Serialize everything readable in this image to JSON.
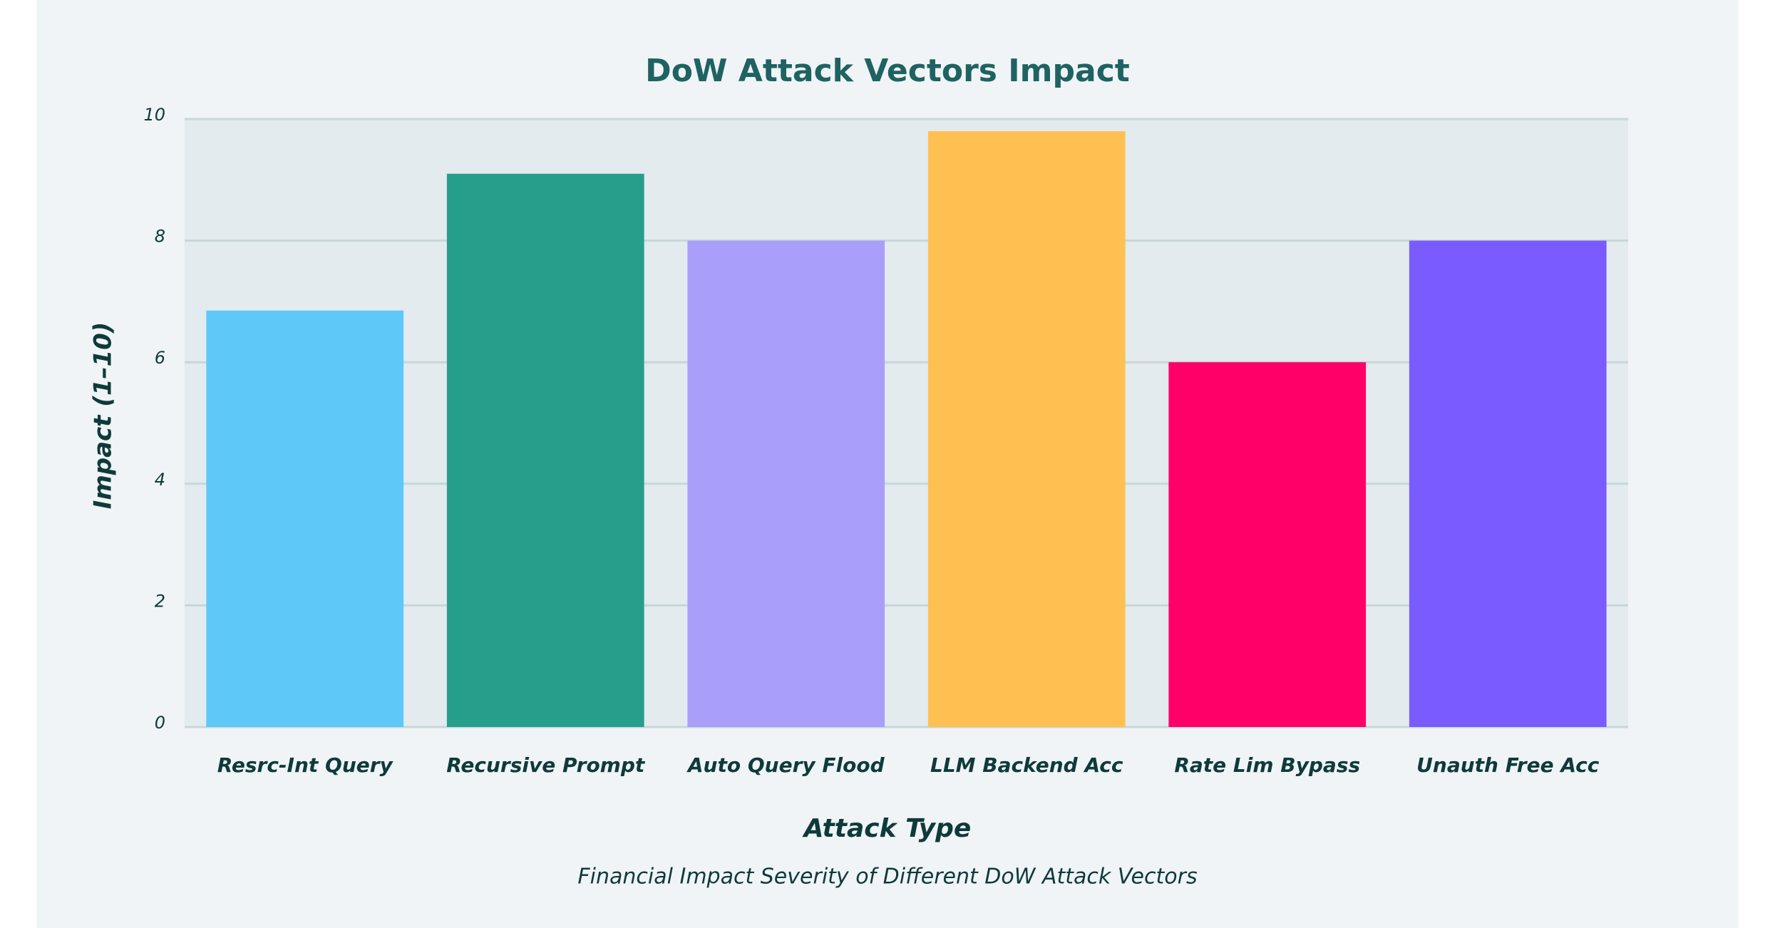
{
  "chart_data": {
    "type": "bar",
    "title": "DoW Attack Vectors Impact",
    "subtitle": "Financial Impact Severity of Different DoW Attack Vectors",
    "x_label": "Attack Type",
    "y_label": "Impact (1–10)",
    "categories": [
      "Resrc-Int Query",
      "Recursive Prompt",
      "Auto Query Flood",
      "LLM Backend Acc",
      "Rate Lim Bypass",
      "Unauth Free Acc"
    ],
    "values": [
      6.85,
      9.1,
      8,
      9.8,
      6,
      8
    ],
    "colors": [
      "#5ec8f8",
      "#269e8c",
      "#a99ffb",
      "#ffc052",
      "#ff0068",
      "#7a5cfe"
    ],
    "ylim": [
      0,
      10
    ],
    "yticks": [
      0,
      2,
      4,
      6,
      8,
      10
    ],
    "grid": true
  }
}
